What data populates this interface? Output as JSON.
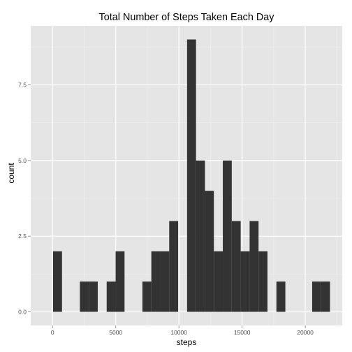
{
  "chart_data": {
    "type": "bar",
    "title": "Total Number of Steps Taken Each Day",
    "xlabel": "steps",
    "ylabel": "count",
    "binwidth": 707,
    "bin_start": 41,
    "xlim": [
      -1727,
      22924
    ],
    "ylim": [
      -0.45,
      9.45
    ],
    "x_ticks": [
      0,
      5000,
      10000,
      15000,
      20000
    ],
    "x_tick_labels": [
      "0",
      "5000",
      "10000",
      "15000",
      "20000"
    ],
    "y_ticks": [
      0,
      2.5,
      5,
      7.5
    ],
    "y_tick_labels": [
      "0.0",
      "2.5",
      "5.0",
      "7.5"
    ],
    "counts": [
      2,
      0,
      0,
      1,
      1,
      0,
      1,
      2,
      0,
      0,
      1,
      2,
      2,
      3,
      0,
      9,
      5,
      4,
      2,
      5,
      3,
      2,
      3,
      2,
      0,
      1,
      0,
      0,
      0,
      1,
      1
    ],
    "bar_color": "#333333",
    "panel_color": "#e5e5e5",
    "grid": true,
    "legend": "none"
  }
}
